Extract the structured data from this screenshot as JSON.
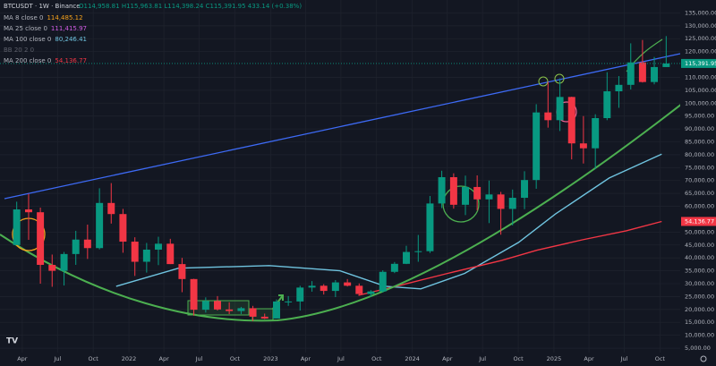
{
  "chart_data": {
    "type": "candlestick",
    "title": "BTCUSDT · 1W · Binance",
    "ohlc_text": "O114,958.81 H115,963.81 L114,398.24 C115,391.95 433.14 (+0.38%)",
    "up_color": "#089981",
    "down_color": "#f23645",
    "x": [
      2021.208,
      2021.292,
      2021.375,
      2021.458,
      2021.542,
      2021.625,
      2021.708,
      2021.792,
      2021.875,
      2021.958,
      2022.042,
      2022.125,
      2022.208,
      2022.292,
      2022.375,
      2022.458,
      2022.542,
      2022.625,
      2022.708,
      2022.792,
      2022.875,
      2022.958,
      2023.042,
      2023.125,
      2023.208,
      2023.292,
      2023.375,
      2023.458,
      2023.542,
      2023.625,
      2023.708,
      2023.792,
      2023.875,
      2023.958,
      2024.042,
      2024.125,
      2024.208,
      2024.292,
      2024.375,
      2024.458,
      2024.542,
      2024.625,
      2024.708,
      2024.792,
      2024.875,
      2024.958,
      2025.042,
      2025.125,
      2025.208,
      2025.292,
      2025.375,
      2025.458,
      2025.542,
      2025.625,
      2025.708,
      2025.792
    ],
    "open": [
      45000,
      58800,
      57700,
      37300,
      35000,
      41500,
      47100,
      43800,
      61300,
      57000,
      46300,
      38500,
      43200,
      45500,
      37600,
      31800,
      19900,
      23300,
      20000,
      19400,
      20500,
      17200,
      16500,
      23100,
      23100,
      28500,
      29200,
      27200,
      30500,
      29200,
      26000,
      27000,
      34600,
      37700,
      42300,
      42600,
      61100,
      71300,
      60600,
      67500,
      62700,
      64600,
      59000,
      63300,
      70200,
      96400,
      93400,
      102400,
      84400,
      82500,
      94200,
      104600,
      107100,
      115800,
      108200,
      114000
    ],
    "high": [
      61800,
      64900,
      59500,
      41300,
      42300,
      50500,
      52900,
      67000,
      69000,
      59000,
      48000,
      45800,
      48200,
      47400,
      40000,
      31900,
      24700,
      25200,
      22800,
      21000,
      21400,
      18400,
      23900,
      25200,
      29200,
      31000,
      29800,
      31400,
      31800,
      30100,
      27500,
      35200,
      38400,
      44700,
      48900,
      64000,
      73800,
      72800,
      71900,
      72000,
      70000,
      65600,
      66500,
      73600,
      99600,
      108300,
      109600,
      102500,
      95000,
      95700,
      112000,
      110500,
      123200,
      124500,
      117900,
      126000
    ],
    "low": [
      45000,
      47000,
      30000,
      28800,
      29300,
      37300,
      39600,
      43300,
      53300,
      42000,
      33000,
      34300,
      37200,
      37600,
      26700,
      17600,
      18800,
      19600,
      18200,
      18200,
      15500,
      16300,
      16500,
      21400,
      19600,
      26900,
      25800,
      24800,
      28900,
      25400,
      24900,
      26600,
      34100,
      37600,
      38500,
      41900,
      59300,
      59100,
      56600,
      58400,
      53500,
      49000,
      52600,
      58900,
      66800,
      90500,
      89200,
      78200,
      76600,
      74400,
      93400,
      98200,
      105300,
      108000,
      107300,
      114000
    ],
    "close": [
      58800,
      57700,
      37300,
      35000,
      41500,
      47100,
      43800,
      61300,
      57000,
      46300,
      38500,
      43200,
      45500,
      37600,
      31800,
      19900,
      23300,
      20000,
      19400,
      20500,
      17200,
      16500,
      23100,
      23100,
      28500,
      29200,
      27200,
      30500,
      29200,
      26000,
      27000,
      34600,
      37700,
      42300,
      42600,
      61100,
      71300,
      60600,
      67500,
      62700,
      64600,
      59000,
      63300,
      70200,
      96400,
      93400,
      102400,
      84400,
      82500,
      94200,
      104600,
      107100,
      115800,
      108200,
      114000,
      115391.95
    ],
    "indicators": [
      {
        "name": "MA 8 close 0",
        "value_label": "114,485.12",
        "color": "#f7a21b"
      },
      {
        "name": "MA 25 close 0",
        "value_label": "111,415.97",
        "color": "#d05ce3"
      },
      {
        "name": "MA 100 close 0",
        "value_label": "80,246.41",
        "color": "#6fc3df",
        "x": [
          2021.91,
          2022.35,
          2022.99,
          2023.49,
          2023.81,
          2024.06,
          2024.37,
          2024.75,
          2025.01,
          2025.39,
          2025.76
        ],
        "values": [
          29000,
          36000,
          37000,
          35000,
          29000,
          28000,
          34000,
          46000,
          57000,
          71000,
          80246.41
        ]
      },
      {
        "name": "BB 20 2 0",
        "color": "#787b86"
      },
      {
        "name": "MA 200 close 0",
        "value_label": "54,136.77",
        "color": "#f23645",
        "x": [
          2023.62,
          2023.93,
          2024.25,
          2024.63,
          2024.88,
          2025.2,
          2025.51,
          2025.76
        ],
        "values": [
          25500,
          29600,
          34000,
          39000,
          43000,
          47000,
          50500,
          54136.77
        ],
        "axis_box": true
      }
    ],
    "current_price": {
      "value": 115391.95,
      "label": "115,391.95"
    },
    "xlim": [
      2021.09,
      2025.891
    ],
    "ylim": [
      1900,
      140000
    ],
    "xticks": [
      {
        "value": 2021.247,
        "label": "Apr"
      },
      {
        "value": 2021.496,
        "label": "Jul"
      },
      {
        "value": 2021.748,
        "label": "Oct"
      },
      2022,
      {
        "value": 2022.247,
        "label": "Apr"
      },
      {
        "value": 2022.496,
        "label": "Jul"
      },
      {
        "value": 2022.748,
        "label": "Oct"
      },
      2023,
      {
        "value": 2023.247,
        "label": "Apr"
      },
      {
        "value": 2023.496,
        "label": "Jul"
      },
      {
        "value": 2023.748,
        "label": "Oct"
      },
      2024,
      {
        "value": 2024.247,
        "label": "Apr"
      },
      {
        "value": 2024.496,
        "label": "Jul"
      },
      {
        "value": 2024.748,
        "label": "Oct"
      },
      2025,
      {
        "value": 2025.247,
        "label": "Apr"
      },
      {
        "value": 2025.496,
        "label": "Jul"
      },
      {
        "value": 2025.748,
        "label": "Oct"
      }
    ],
    "yticks": [
      {
        "value": 5000,
        "label": "5,000.00"
      },
      {
        "value": 10000,
        "label": "10,000.00"
      },
      {
        "value": 15000,
        "label": "15,000.00"
      },
      {
        "value": 20000,
        "label": "20,000.00"
      },
      {
        "value": 25000,
        "label": "25,000.00"
      },
      {
        "value": 30000,
        "label": "30,000.00"
      },
      {
        "value": 35000,
        "label": "35,000.00"
      },
      {
        "value": 40000,
        "label": "40,000.00"
      },
      {
        "value": 45000,
        "label": "45,000.00"
      },
      {
        "value": 50000,
        "label": "50,000.00"
      },
      {
        "value": 60000,
        "label": "60,000.00"
      },
      {
        "value": 65000,
        "label": "65,000.00"
      },
      {
        "value": 70000,
        "label": "70,000.00"
      },
      {
        "value": 75000,
        "label": "75,000.00"
      },
      {
        "value": 80000,
        "label": "80,000.00"
      },
      {
        "value": 85000,
        "label": "85,000.00"
      },
      {
        "value": 90000,
        "label": "90,000.00"
      },
      {
        "value": 95000,
        "label": "95,000.00"
      },
      {
        "value": 100000,
        "label": "100,000.00"
      },
      {
        "value": 105000,
        "label": "105,000.00"
      },
      {
        "value": 110000,
        "label": "110,000.00"
      },
      {
        "value": 120000,
        "label": "120,000.00"
      },
      {
        "value": 125000,
        "label": "125,000.00"
      },
      {
        "value": 130000,
        "label": "130,000.00"
      },
      {
        "value": 135000,
        "label": "135,000.00"
      }
    ],
    "grid": true
  }
}
